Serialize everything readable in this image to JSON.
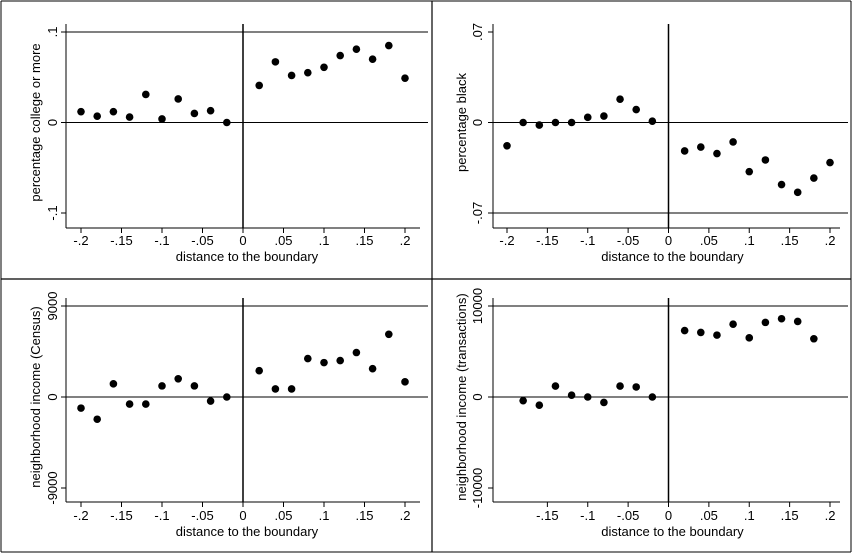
{
  "chart_data": [
    {
      "type": "scatter",
      "xlabel": "distance to the boundary",
      "ylabel": "percentage college or more",
      "xlim": [
        -0.2,
        0.2
      ],
      "ylim": [
        -0.1,
        0.1
      ],
      "x_ticks": [
        "-.2",
        "-.15",
        "-.1",
        "-.05",
        "0",
        ".05",
        ".1",
        ".15",
        ".2"
      ],
      "y_ticks": [
        {
          "value": 0.1,
          "label": ".1"
        },
        {
          "value": 0,
          "label": "0"
        },
        {
          "value": -0.1,
          "label": "-.1"
        }
      ],
      "reference_lines": {
        "vertical_x": 0,
        "horizontal_y": [
          0,
          0.1
        ]
      },
      "points": [
        {
          "x": -0.2,
          "y": 0.012
        },
        {
          "x": -0.18,
          "y": 0.007
        },
        {
          "x": -0.16,
          "y": 0.012
        },
        {
          "x": -0.14,
          "y": 0.006
        },
        {
          "x": -0.12,
          "y": 0.031
        },
        {
          "x": -0.1,
          "y": 0.004
        },
        {
          "x": -0.08,
          "y": 0.026
        },
        {
          "x": -0.06,
          "y": 0.01
        },
        {
          "x": -0.04,
          "y": 0.013
        },
        {
          "x": -0.02,
          "y": 0.0
        },
        {
          "x": 0.02,
          "y": 0.041
        },
        {
          "x": 0.04,
          "y": 0.067
        },
        {
          "x": 0.06,
          "y": 0.052
        },
        {
          "x": 0.08,
          "y": 0.055
        },
        {
          "x": 0.1,
          "y": 0.061
        },
        {
          "x": 0.12,
          "y": 0.074
        },
        {
          "x": 0.14,
          "y": 0.081
        },
        {
          "x": 0.16,
          "y": 0.07
        },
        {
          "x": 0.18,
          "y": 0.085
        },
        {
          "x": 0.2,
          "y": 0.049
        }
      ]
    },
    {
      "type": "scatter",
      "xlabel": "distance to the boundary",
      "ylabel": "percentage black",
      "xlim": [
        -0.2,
        0.2
      ],
      "ylim": [
        -0.07,
        0.07
      ],
      "x_ticks": [
        "-.2",
        "-.15",
        "-.1",
        "-.05",
        "0",
        ".05",
        ".1",
        ".15",
        ".2"
      ],
      "y_ticks": [
        {
          "value": 0.07,
          "label": ".07"
        },
        {
          "value": 0,
          "label": "0"
        },
        {
          "value": -0.07,
          "label": "-.07"
        }
      ],
      "reference_lines": {
        "vertical_x": 0,
        "horizontal_y": [
          0,
          -0.07
        ]
      },
      "points": [
        {
          "x": -0.2,
          "y": -0.018
        },
        {
          "x": -0.18,
          "y": 0.0
        },
        {
          "x": -0.16,
          "y": -0.002
        },
        {
          "x": -0.14,
          "y": 0.0
        },
        {
          "x": -0.12,
          "y": 0.0
        },
        {
          "x": -0.1,
          "y": 0.004
        },
        {
          "x": -0.08,
          "y": 0.005
        },
        {
          "x": -0.06,
          "y": 0.018
        },
        {
          "x": -0.04,
          "y": 0.01
        },
        {
          "x": -0.02,
          "y": 0.001
        },
        {
          "x": 0.02,
          "y": -0.022
        },
        {
          "x": 0.04,
          "y": -0.019
        },
        {
          "x": 0.06,
          "y": -0.024
        },
        {
          "x": 0.08,
          "y": -0.015
        },
        {
          "x": 0.1,
          "y": -0.038
        },
        {
          "x": 0.12,
          "y": -0.029
        },
        {
          "x": 0.14,
          "y": -0.048
        },
        {
          "x": 0.16,
          "y": -0.054
        },
        {
          "x": 0.18,
          "y": -0.043
        },
        {
          "x": 0.2,
          "y": -0.031
        }
      ]
    },
    {
      "type": "scatter",
      "xlabel": "distance to the boundary",
      "ylabel": "neighborhood income (Census)",
      "xlim": [
        -0.2,
        0.2
      ],
      "ylim": [
        -9000,
        9000
      ],
      "x_ticks": [
        "-.2",
        "-.15",
        "-.1",
        "-.05",
        "0",
        ".05",
        ".1",
        ".15",
        ".2"
      ],
      "y_ticks": [
        {
          "value": 9000,
          "label": "9000"
        },
        {
          "value": 0,
          "label": "0"
        },
        {
          "value": -9000,
          "label": "-9000"
        }
      ],
      "reference_lines": {
        "vertical_x": 0,
        "horizontal_y": [
          0,
          9000
        ]
      },
      "points": [
        {
          "x": -0.2,
          "y": -1100
        },
        {
          "x": -0.18,
          "y": -2200
        },
        {
          "x": -0.16,
          "y": 1300
        },
        {
          "x": -0.14,
          "y": -700
        },
        {
          "x": -0.12,
          "y": -700
        },
        {
          "x": -0.1,
          "y": 1100
        },
        {
          "x": -0.08,
          "y": 1800
        },
        {
          "x": -0.06,
          "y": 1100
        },
        {
          "x": -0.04,
          "y": -400
        },
        {
          "x": -0.02,
          "y": 0
        },
        {
          "x": 0.02,
          "y": 2600
        },
        {
          "x": 0.04,
          "y": 800
        },
        {
          "x": 0.06,
          "y": 800
        },
        {
          "x": 0.08,
          "y": 3800
        },
        {
          "x": 0.1,
          "y": 3400
        },
        {
          "x": 0.12,
          "y": 3600
        },
        {
          "x": 0.14,
          "y": 4400
        },
        {
          "x": 0.16,
          "y": 2800
        },
        {
          "x": 0.18,
          "y": 6200
        },
        {
          "x": 0.2,
          "y": 1500
        }
      ]
    },
    {
      "type": "scatter",
      "xlabel": "distance to the boundary",
      "ylabel": "neighborhood income (transactions)",
      "xlim": [
        -0.2,
        0.2
      ],
      "ylim": [
        -10000,
        10000
      ],
      "x_ticks": [
        "-.15",
        "-.1",
        "-.05",
        "0",
        ".05",
        ".1",
        ".15",
        ".2"
      ],
      "y_ticks": [
        {
          "value": 10000,
          "label": "10000"
        },
        {
          "value": 0,
          "label": "0"
        },
        {
          "value": -10000,
          "label": "-10000"
        }
      ],
      "reference_lines": {
        "vertical_x": 0,
        "horizontal_y": [
          0,
          10000
        ]
      },
      "points": [
        {
          "x": -0.18,
          "y": -400
        },
        {
          "x": -0.16,
          "y": -900
        },
        {
          "x": -0.14,
          "y": 1200
        },
        {
          "x": -0.12,
          "y": 200
        },
        {
          "x": -0.1,
          "y": 0
        },
        {
          "x": -0.08,
          "y": -600
        },
        {
          "x": -0.06,
          "y": 1200
        },
        {
          "x": -0.04,
          "y": 1100
        },
        {
          "x": -0.02,
          "y": 0
        },
        {
          "x": 0.02,
          "y": 7300
        },
        {
          "x": 0.04,
          "y": 7100
        },
        {
          "x": 0.06,
          "y": 6800
        },
        {
          "x": 0.08,
          "y": 8000
        },
        {
          "x": 0.1,
          "y": 6500
        },
        {
          "x": 0.12,
          "y": 8200
        },
        {
          "x": 0.14,
          "y": 8600
        },
        {
          "x": 0.16,
          "y": 8300
        },
        {
          "x": 0.18,
          "y": 6400
        }
      ]
    }
  ]
}
